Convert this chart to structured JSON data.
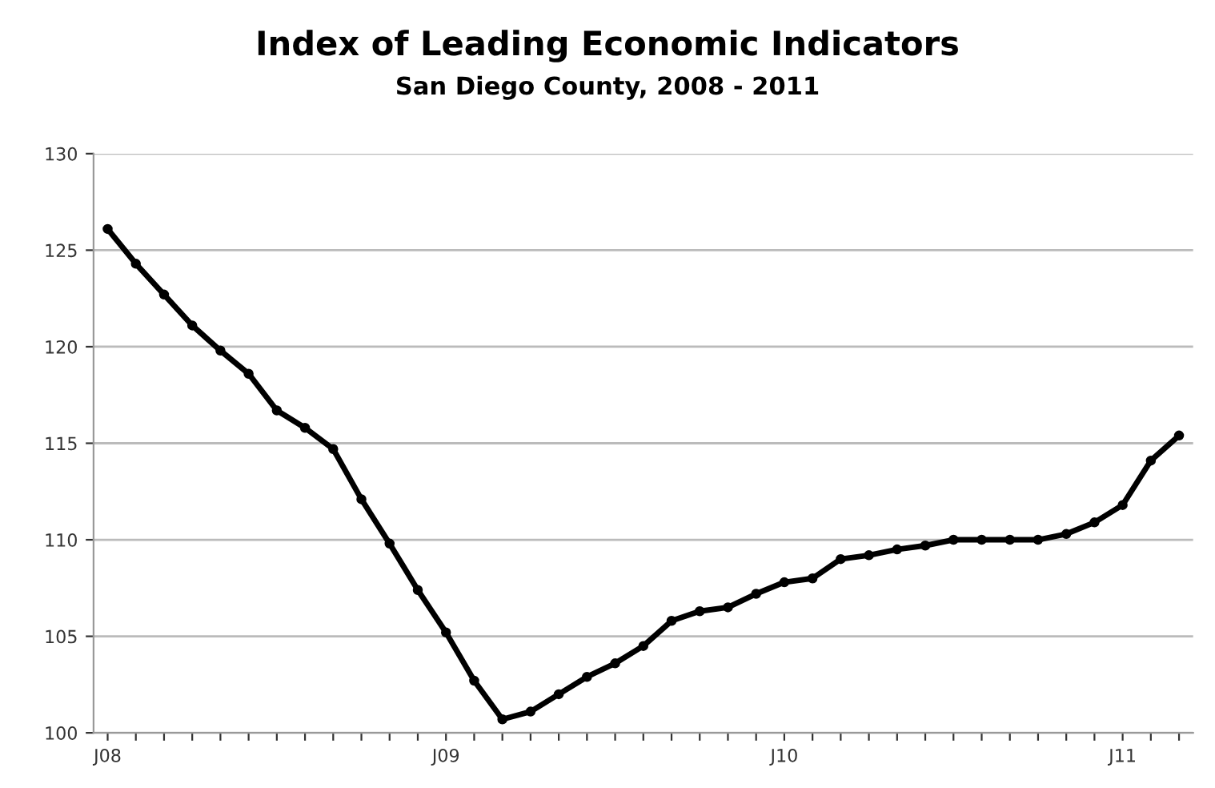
{
  "chart_data": {
    "type": "line",
    "title": "Index of Leading Economic Indicators",
    "subtitle": "San Diego County, 2008 - 2011",
    "categories": [
      "J08",
      null,
      null,
      null,
      null,
      null,
      null,
      null,
      null,
      null,
      null,
      null,
      "J09",
      null,
      null,
      null,
      null,
      null,
      null,
      null,
      null,
      null,
      null,
      null,
      "J10",
      null,
      null,
      null,
      null,
      null,
      null,
      null,
      null,
      null,
      null,
      null,
      "J11",
      null,
      null
    ],
    "series": [
      {
        "color": "#000000",
        "values": [
          126.1,
          124.3,
          122.7,
          121.1,
          119.8,
          118.6,
          116.7,
          115.8,
          114.7,
          112.1,
          109.8,
          107.4,
          105.2,
          102.7,
          100.7,
          101.1,
          102.0,
          102.9,
          103.6,
          104.5,
          105.8,
          106.3,
          106.5,
          107.2,
          107.8,
          108.0,
          109.0,
          109.2,
          109.5,
          109.7,
          110.0,
          110.0,
          110.0,
          110.0,
          110.3,
          110.9,
          111.8,
          114.1,
          115.4
        ]
      }
    ],
    "ylim": [
      100,
      130
    ],
    "yticks": [
      100,
      105,
      110,
      115,
      120,
      125,
      130
    ],
    "grid": "y",
    "marker": "circle",
    "line_style": "solid"
  }
}
